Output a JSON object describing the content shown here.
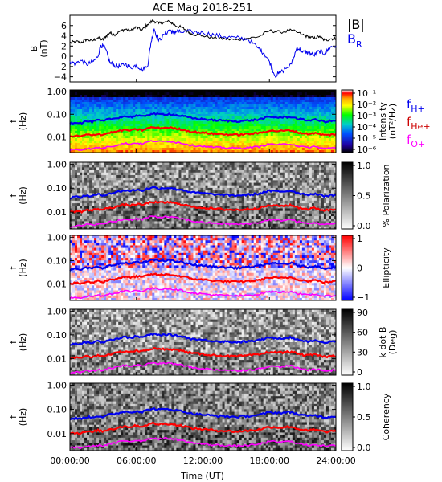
{
  "chart_data": [
    {
      "type": "line",
      "title": "ACE Mag 2018-251",
      "ylabel_line1": "B",
      "ylabel_line2": "(nT)",
      "ylim": [
        -5,
        8
      ],
      "yticks": [
        6,
        4,
        2,
        0,
        -2,
        -4
      ],
      "yticklabels": [
        "6",
        "4",
        "2",
        "0",
        "−2",
        "−4"
      ],
      "xlim": [
        0,
        24
      ],
      "legend": {
        "placement": "right",
        "entries": [
          "|B|",
          "B_R"
        ]
      },
      "series": [
        {
          "name": "|B|",
          "color": "#000000",
          "x": [
            0,
            0.5,
            1,
            1.5,
            2,
            2.5,
            3,
            3.3,
            3.6,
            4,
            4.5,
            5,
            5.5,
            6,
            6.5,
            7,
            7.5,
            8,
            8.5,
            9,
            9.5,
            10,
            10.5,
            11,
            12,
            13,
            14,
            15,
            16,
            17,
            18,
            19,
            20,
            21,
            21.5,
            22,
            22.5,
            23,
            23.5,
            24
          ],
          "values": [
            2.6,
            2.9,
            2.7,
            3.3,
            3.0,
            3.6,
            3.2,
            4.0,
            4.6,
            4.2,
            4.9,
            5.3,
            5.0,
            5.7,
            5.1,
            6.2,
            7.0,
            6.4,
            6.6,
            6.8,
            6.0,
            5.7,
            5.1,
            4.4,
            4.0,
            3.6,
            3.4,
            3.2,
            3.5,
            3.8,
            5.0,
            4.7,
            5.1,
            4.2,
            3.8,
            3.5,
            3.9,
            3.1,
            3.4,
            3.5
          ]
        },
        {
          "name": "B_R",
          "color": "#0000ee",
          "x": [
            0,
            0.5,
            1,
            1.5,
            2,
            2.5,
            2.8,
            3.2,
            3.6,
            4,
            4.5,
            5,
            5.5,
            6,
            6.5,
            7,
            7.3,
            7.6,
            8,
            8.5,
            9,
            9.3,
            9.6,
            10,
            11,
            12,
            13,
            14,
            15,
            16,
            17,
            17.5,
            18,
            18.5,
            19,
            20,
            20.5,
            21,
            21.5,
            22,
            22.5,
            23,
            23.5,
            24
          ],
          "values": [
            -1.0,
            -1.4,
            -0.8,
            -1.6,
            -1.2,
            -0.2,
            2.2,
            1.5,
            -1.2,
            -1.8,
            -2.0,
            -1.5,
            -2.3,
            -1.7,
            -2.6,
            -2.0,
            2.5,
            5.4,
            3.0,
            4.2,
            5.2,
            4.6,
            4.9,
            4.7,
            4.8,
            4.6,
            4.2,
            3.8,
            3.6,
            3.4,
            1.6,
            0.6,
            -1.0,
            -3.8,
            -3.2,
            -1.5,
            1.8,
            0.8,
            0.8,
            0.2,
            1.0,
            0.5,
            1.8,
            2.0
          ]
        }
      ]
    },
    {
      "type": "heatmap",
      "ylabel_line1": "f",
      "ylabel_line2": "(Hz)",
      "yscale": "log",
      "ylim": [
        0.002,
        1.2
      ],
      "yticks": [
        1.0,
        0.1,
        0.01
      ],
      "yticklabels": [
        "1.00",
        "0.10",
        "0.01"
      ],
      "xlim": [
        0,
        24
      ],
      "colorbar": {
        "label_line1": "Intensity",
        "label_line2": "(nT²/Hz)",
        "scale": "log",
        "ticklabels": [
          "10⁻¹",
          "10⁻²",
          "10⁻³",
          "10⁻⁴",
          "10⁻⁵",
          "10⁻⁶"
        ],
        "colormap": [
          "#ffffff",
          "#ff0000",
          "#ffaa00",
          "#ffff00",
          "#00ff00",
          "#00cccc",
          "#0050ff",
          "#2000a0",
          "#000000"
        ]
      },
      "legend": {
        "placement": "right",
        "entries": [
          "f_H+",
          "f_He+",
          "f_O+"
        ]
      }
    },
    {
      "type": "heatmap",
      "ylabel_line1": "f",
      "ylabel_line2": "(Hz)",
      "yscale": "log",
      "yticklabels": [
        "1.00",
        "0.10",
        "0.01"
      ],
      "colorbar": {
        "label": "% Polarization",
        "ticklabels": [
          "1.0",
          "0.5",
          "0.0"
        ],
        "colormap": [
          "#000000",
          "#ffffff"
        ]
      }
    },
    {
      "type": "heatmap",
      "ylabel_line1": "f",
      "ylabel_line2": "(Hz)",
      "yscale": "log",
      "yticklabels": [
        "1.00",
        "0.10",
        "0.01"
      ],
      "colorbar": {
        "label": "Ellipticity",
        "ticklabels": [
          "1",
          "0",
          "−1"
        ],
        "colormap": [
          "#ff0000",
          "#ffffff",
          "#0000ff"
        ]
      }
    },
    {
      "type": "heatmap",
      "ylabel_line1": "f",
      "ylabel_line2": "(Hz)",
      "yscale": "log",
      "yticklabels": [
        "1.00",
        "0.10",
        "0.01"
      ],
      "colorbar": {
        "label_line1": "k dot B",
        "label_line2": "(Deg)",
        "ticklabels": [
          "90",
          "60",
          "30",
          "0"
        ],
        "colormap": [
          "#000000",
          "#ffffff"
        ]
      }
    },
    {
      "type": "heatmap",
      "ylabel_line1": "f",
      "ylabel_line2": "(Hz)",
      "yscale": "log",
      "yticklabels": [
        "1.00",
        "0.10",
        "0.01"
      ],
      "colorbar": {
        "label": "Coherency",
        "ticklabels": [
          "1.0",
          "0.5",
          "0.0"
        ],
        "colormap": [
          "#000000",
          "#ffffff"
        ]
      }
    }
  ],
  "x_axis": {
    "label": "Time (UT)",
    "ticks": [
      0,
      6,
      12,
      18,
      24
    ],
    "ticklabels": [
      "00:00:00",
      "06:00:00",
      "12:00:00",
      "18:00:00",
      "24:00:00"
    ]
  },
  "gyro_lines": {
    "x": [
      0,
      0.5,
      1,
      1.5,
      2,
      2.5,
      3,
      3.5,
      4,
      4.5,
      5,
      5.5,
      6,
      6.5,
      7,
      7.5,
      8,
      8.5,
      9,
      9.5,
      10,
      11,
      12,
      13,
      14,
      15,
      16,
      17,
      18,
      19,
      20,
      20.5,
      21,
      21.5,
      22,
      23,
      24
    ],
    "f_H+": {
      "color": "#0000ee",
      "values": [
        0.04,
        0.044,
        0.041,
        0.05,
        0.046,
        0.055,
        0.049,
        0.061,
        0.064,
        0.075,
        0.081,
        0.076,
        0.087,
        0.078,
        0.095,
        0.107,
        0.098,
        0.101,
        0.104,
        0.092,
        0.087,
        0.067,
        0.061,
        0.055,
        0.052,
        0.049,
        0.053,
        0.058,
        0.076,
        0.072,
        0.078,
        0.064,
        0.058,
        0.053,
        0.059,
        0.047,
        0.053
      ]
    },
    "f_He+": {
      "color": "#ff0000",
      "values": [
        0.01,
        0.011,
        0.0103,
        0.0125,
        0.0115,
        0.0138,
        0.0123,
        0.0153,
        0.016,
        0.0188,
        0.0203,
        0.019,
        0.0218,
        0.0195,
        0.0238,
        0.0268,
        0.0245,
        0.0253,
        0.026,
        0.023,
        0.0218,
        0.0168,
        0.0153,
        0.0138,
        0.013,
        0.0123,
        0.0133,
        0.0145,
        0.019,
        0.018,
        0.0195,
        0.016,
        0.0145,
        0.0133,
        0.0148,
        0.0118,
        0.0133
      ]
    },
    "f_O+": {
      "color": "#ff00ff",
      "values": [
        0.0025,
        0.0028,
        0.0026,
        0.0031,
        0.0029,
        0.0034,
        0.0031,
        0.0038,
        0.004,
        0.0047,
        0.0051,
        0.0048,
        0.0054,
        0.0049,
        0.0059,
        0.0067,
        0.0061,
        0.0063,
        0.0065,
        0.0058,
        0.0054,
        0.0042,
        0.0038,
        0.0034,
        0.0033,
        0.0031,
        0.0033,
        0.0036,
        0.0048,
        0.0045,
        0.0049,
        0.004,
        0.0036,
        0.0033,
        0.0037,
        0.003,
        0.0033
      ]
    }
  }
}
